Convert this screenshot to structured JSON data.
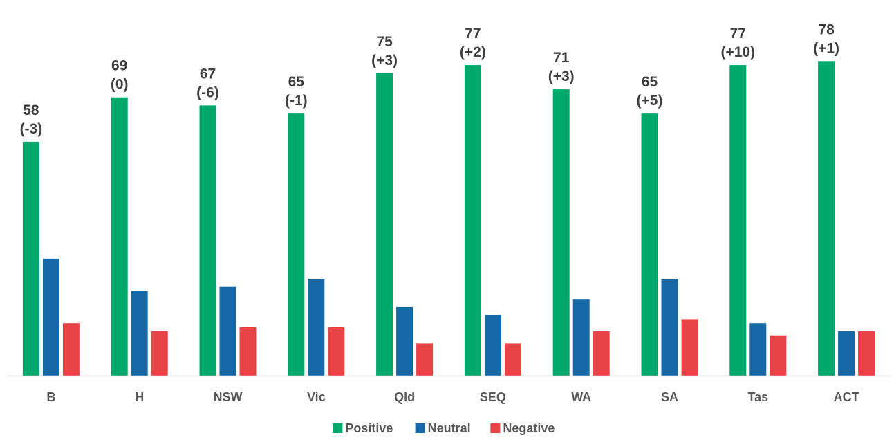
{
  "chart_data": {
    "type": "bar",
    "categories": [
      "B",
      "H",
      "NSW",
      "Vic",
      "Qld",
      "SEQ",
      "WA",
      "SA",
      "Tas",
      "ACT"
    ],
    "series": [
      {
        "name": "Positive",
        "color": "#00a86b",
        "values": [
          58,
          69,
          67,
          65,
          75,
          77,
          71,
          65,
          77,
          78
        ]
      },
      {
        "name": "Neutral",
        "color": "#1768a6",
        "values": [
          29,
          21,
          22,
          24,
          17,
          15,
          19,
          24,
          13,
          11
        ]
      },
      {
        "name": "Negative",
        "color": "#e84347",
        "values": [
          13,
          11,
          12,
          12,
          8,
          8,
          11,
          14,
          10,
          11
        ]
      }
    ],
    "data_labels": [
      [
        "58",
        "(-3)"
      ],
      [
        "69",
        "(0)"
      ],
      [
        "67",
        "(-6)"
      ],
      [
        "65",
        "(-1)"
      ],
      [
        "75",
        "(+3)"
      ],
      [
        "77",
        "(+2)"
      ],
      [
        "71",
        "(+3)"
      ],
      [
        "65",
        "(+5)"
      ],
      [
        "77",
        "(+10)"
      ],
      [
        "78",
        "(+1)"
      ]
    ],
    "ylim": [
      0,
      80
    ],
    "grid": false,
    "legend_position": "bottom"
  }
}
